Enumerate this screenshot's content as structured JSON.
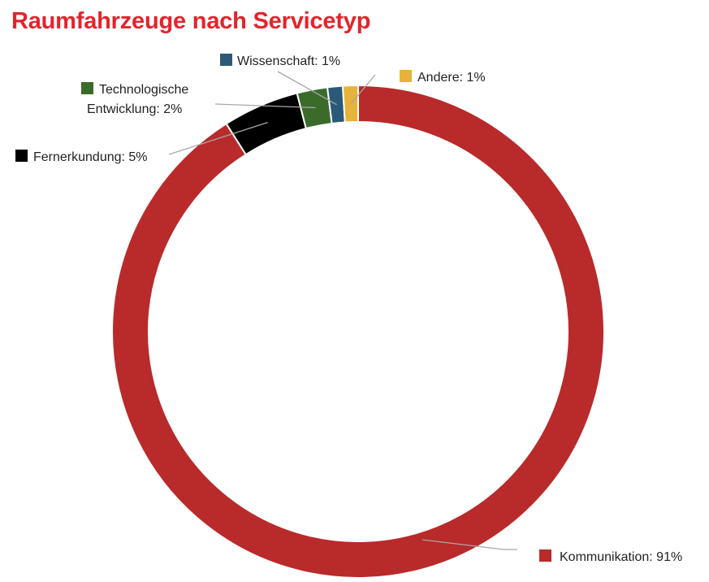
{
  "chart_data": {
    "type": "pie",
    "variant": "donut",
    "title": "Raumfahrzeuge nach Servicetyp",
    "slices": [
      {
        "key": "kommunikation",
        "label": "Kommunikation: 91%",
        "value": 91,
        "color": "#b92a2a"
      },
      {
        "key": "fernerkundung",
        "label": "Fernerkundung: 5%",
        "value": 5,
        "color": "#000000"
      },
      {
        "key": "technologische-entwicklung",
        "label_lines": [
          "Technologische",
          "Entwicklung: 2%"
        ],
        "value": 2,
        "color": "#3b6b2b"
      },
      {
        "key": "wissenschaft",
        "label": "Wissenschaft: 1%",
        "value": 1,
        "color": "#2b5a78"
      },
      {
        "key": "andere",
        "label": "Andere: 1%",
        "value": 1,
        "color": "#e8b33a"
      }
    ],
    "start_angle_deg": 0,
    "direction": "clockwise",
    "legend": "outside-labels-with-leader-lines"
  }
}
